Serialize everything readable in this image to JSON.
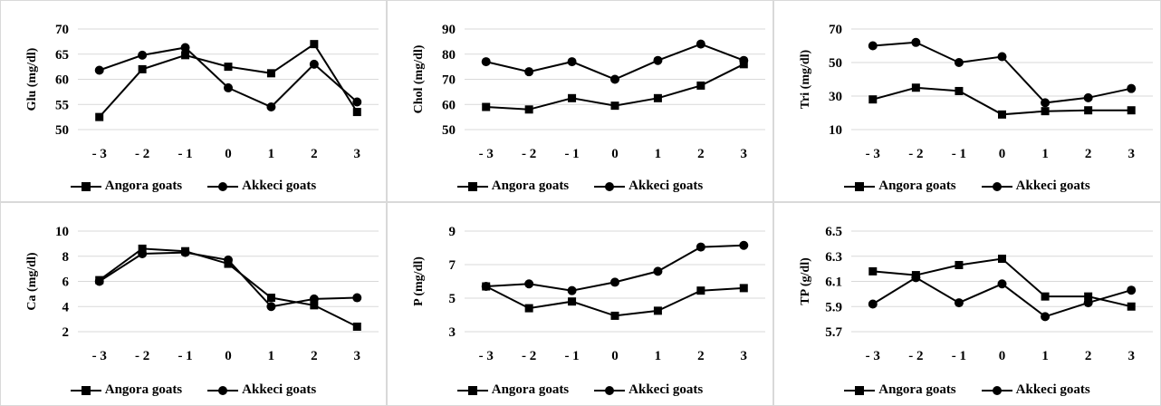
{
  "chart_data": [
    {
      "type": "line",
      "ylabel": "Glu (mg/dl)",
      "categories": [
        "- 3",
        "- 2",
        "- 1",
        "0",
        "1",
        "2",
        "3"
      ],
      "ylim": [
        50,
        70
      ],
      "yticks": [
        "50",
        "55",
        "60",
        "65",
        "70"
      ],
      "ytick_values": [
        50,
        55,
        60,
        65,
        70
      ],
      "series": [
        {
          "name": "Angora goats",
          "marker": "square",
          "values": [
            52.5,
            62,
            64.8,
            62.5,
            61.2,
            67,
            53.5
          ]
        },
        {
          "name": "Akkeci goats",
          "marker": "circle",
          "values": [
            61.8,
            64.8,
            66.3,
            58.3,
            54.5,
            63,
            55.5
          ]
        }
      ]
    },
    {
      "type": "line",
      "ylabel": "Chol (mg/dl)",
      "categories": [
        "- 3",
        "- 2",
        "- 1",
        "0",
        "1",
        "2",
        "3"
      ],
      "ylim": [
        50,
        90
      ],
      "yticks": [
        "50",
        "60",
        "70",
        "80",
        "90"
      ],
      "ytick_values": [
        50,
        60,
        70,
        80,
        90
      ],
      "series": [
        {
          "name": "Angora goats",
          "marker": "square",
          "values": [
            59,
            58,
            62.5,
            59.5,
            62.5,
            67.5,
            76
          ]
        },
        {
          "name": "Akkeci goats",
          "marker": "circle",
          "values": [
            77,
            73,
            77,
            70,
            77.5,
            84,
            77.5
          ]
        }
      ]
    },
    {
      "type": "line",
      "ylabel": "Tri (mg/dl)",
      "categories": [
        "- 3",
        "- 2",
        "- 1",
        "0",
        "1",
        "2",
        "3"
      ],
      "ylim": [
        10,
        70
      ],
      "yticks": [
        "10",
        "30",
        "50",
        "70"
      ],
      "ytick_values": [
        10,
        30,
        50,
        70
      ],
      "series": [
        {
          "name": "Angora goats",
          "marker": "square",
          "values": [
            28,
            35,
            33,
            19,
            21,
            21.5,
            21.5
          ]
        },
        {
          "name": "Akkeci goats",
          "marker": "circle",
          "values": [
            60,
            62,
            50,
            53.5,
            26,
            29,
            34.5
          ]
        }
      ]
    },
    {
      "type": "line",
      "ylabel": "Ca (mg/dl)",
      "categories": [
        "- 3",
        "- 2",
        "- 1",
        "0",
        "1",
        "2",
        "3"
      ],
      "ylim": [
        2,
        10
      ],
      "yticks": [
        "2",
        "4",
        "6",
        "8",
        "10"
      ],
      "ytick_values": [
        2,
        4,
        6,
        8,
        10
      ],
      "series": [
        {
          "name": "Angora goats",
          "marker": "square",
          "values": [
            6.1,
            8.6,
            8.4,
            7.4,
            4.7,
            4.1,
            2.4
          ]
        },
        {
          "name": "Akkeci goats",
          "marker": "circle",
          "values": [
            6.0,
            8.2,
            8.3,
            7.7,
            4.0,
            4.6,
            4.7
          ]
        }
      ]
    },
    {
      "type": "line",
      "ylabel": "P (mg/dl)",
      "categories": [
        "- 3",
        "- 2",
        "- 1",
        "0",
        "1",
        "2",
        "3"
      ],
      "ylim": [
        3,
        9
      ],
      "yticks": [
        "3",
        "5",
        "7",
        "9"
      ],
      "ytick_values": [
        3,
        5,
        7,
        9
      ],
      "series": [
        {
          "name": "Angora goats",
          "marker": "square",
          "values": [
            5.7,
            4.4,
            4.8,
            3.95,
            4.25,
            5.45,
            5.6
          ]
        },
        {
          "name": "Akkeci goats",
          "marker": "circle",
          "values": [
            5.7,
            5.85,
            5.45,
            5.95,
            6.6,
            8.05,
            8.15
          ]
        }
      ]
    },
    {
      "type": "line",
      "ylabel": "TP (g/dl)",
      "categories": [
        "- 3",
        "- 2",
        "- 1",
        "0",
        "1",
        "2",
        "3"
      ],
      "ylim": [
        5.7,
        6.5
      ],
      "yticks": [
        "5.7",
        "5.9",
        "6.1",
        "6.3",
        "6.5"
      ],
      "ytick_values": [
        5.7,
        5.9,
        6.1,
        6.3,
        6.5
      ],
      "series": [
        {
          "name": "Angora goats",
          "marker": "square",
          "values": [
            6.18,
            6.15,
            6.23,
            6.28,
            5.98,
            5.98,
            5.9
          ]
        },
        {
          "name": "Akkeci goats",
          "marker": "circle",
          "values": [
            5.92,
            6.13,
            5.93,
            6.08,
            5.82,
            5.93,
            6.03
          ]
        }
      ]
    }
  ],
  "colors": {
    "line": "#000000",
    "grid": "#d9d9d9",
    "border": "#d9d9d9"
  }
}
